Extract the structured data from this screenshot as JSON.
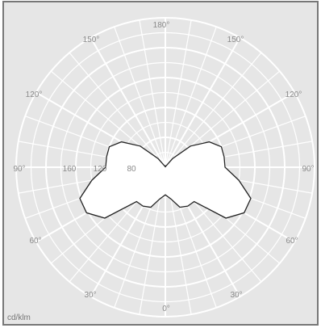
{
  "chart_data": {
    "type": "polar-line",
    "title": "",
    "unit_label": "cd/klm",
    "angle_labels": {
      "top": "180°",
      "upper_left": "150°",
      "upper_right": "150°",
      "mid_upper_left": "120°",
      "mid_upper_right": "120°",
      "left": "90°",
      "right": "90°",
      "lower_left": "60°",
      "lower_right": "60°",
      "bottom_left": "30°",
      "bottom_right": "30°",
      "bottom": "0°"
    },
    "radial_labels": [
      "160",
      "120",
      "80"
    ],
    "radial_ticks": [
      40,
      80,
      120,
      160,
      200
    ],
    "r_max": 200,
    "curve": {
      "angles_deg": [
        0,
        10,
        20,
        30,
        40,
        50,
        60,
        70,
        80,
        90,
        100,
        110,
        120,
        130,
        140,
        150,
        160,
        170,
        180
      ],
      "values": [
        37,
        43,
        57,
        60,
        60,
        106,
        122,
        122,
        100,
        80,
        80,
        80,
        68,
        44,
        15,
        2,
        2,
        1,
        0
      ]
    },
    "colors": {
      "background": "#e6e6e6",
      "grid": "#ffffff",
      "curve_fill": "#ffffff",
      "curve_stroke": "#222222",
      "frame": "#777777"
    }
  }
}
